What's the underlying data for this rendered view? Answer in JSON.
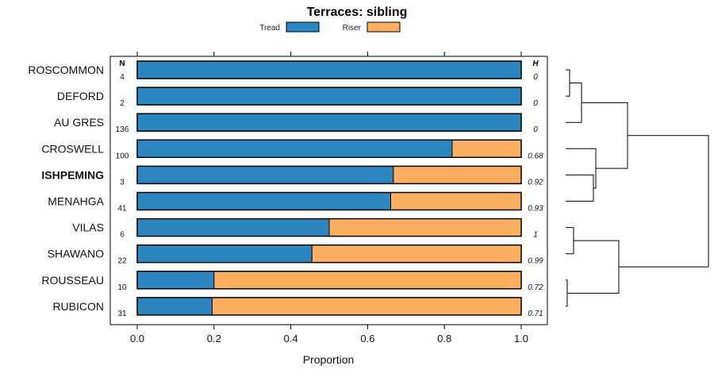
{
  "chart_data": {
    "type": "bar",
    "orientation": "horizontal",
    "stacked": true,
    "title": "Terraces: sibling",
    "xlabel": "Proportion",
    "ylabel": "",
    "xlim": [
      0,
      1
    ],
    "x_ticks": [
      "0.0",
      "0.2",
      "0.4",
      "0.6",
      "0.8",
      "1.0"
    ],
    "x_tick_values": [
      0,
      0.2,
      0.4,
      0.6,
      0.8,
      1.0
    ],
    "legend": {
      "placement": "top-center",
      "entries": [
        {
          "label": "Tread",
          "color": "#2E86C1"
        },
        {
          "label": "Riser",
          "color": "#FDAE61"
        }
      ]
    },
    "n_header": "N",
    "h_header": "H",
    "categories": [
      "ROSCOMMON",
      "DEFORD",
      "AU GRES",
      "CROSWELL",
      "ISHPEMING",
      "MENAHGA",
      "VILAS",
      "SHAWANO",
      "ROUSSEAU",
      "RUBICON"
    ],
    "highlighted": "ISHPEMING",
    "n_values": [
      "4",
      "2",
      "136",
      "100",
      "3",
      "41",
      "6",
      "22",
      "10",
      "31"
    ],
    "h_values": [
      "0",
      "0",
      "0",
      "0.68",
      "0.92",
      "0.93",
      "1",
      "0.99",
      "0.72",
      "0.71"
    ],
    "series": [
      {
        "name": "Tread",
        "values": [
          1.0,
          1.0,
          1.0,
          0.82,
          0.667,
          0.66,
          0.5,
          0.455,
          0.2,
          0.195
        ]
      },
      {
        "name": "Riser",
        "values": [
          0.0,
          0.0,
          0.0,
          0.18,
          0.333,
          0.34,
          0.5,
          0.545,
          0.8,
          0.805
        ]
      }
    ],
    "dendrogram": {
      "description": "hierarchical clustering of rows shown to the right",
      "merges": [
        {
          "id": "a",
          "left": "ROSCOMMON",
          "right": "DEFORD",
          "height": 0.05
        },
        {
          "id": "b",
          "left": "a",
          "right": "AU GRES",
          "height": 0.2
        },
        {
          "id": "c",
          "left": "ISHPEMING",
          "right": "MENAHGA",
          "height": 0.35
        },
        {
          "id": "d",
          "left": "CROSWELL",
          "right": "c",
          "height": 0.38
        },
        {
          "id": "e",
          "left": "b",
          "right": "d",
          "height": 0.78
        },
        {
          "id": "f",
          "left": "VILAS",
          "right": "SHAWANO",
          "height": 0.1
        },
        {
          "id": "g",
          "left": "ROUSSEAU",
          "right": "RUBICON",
          "height": 0.02
        },
        {
          "id": "h",
          "left": "f",
          "right": "g",
          "height": 0.67
        },
        {
          "id": "i",
          "left": "e",
          "right": "h",
          "height": 1.8
        }
      ]
    }
  }
}
